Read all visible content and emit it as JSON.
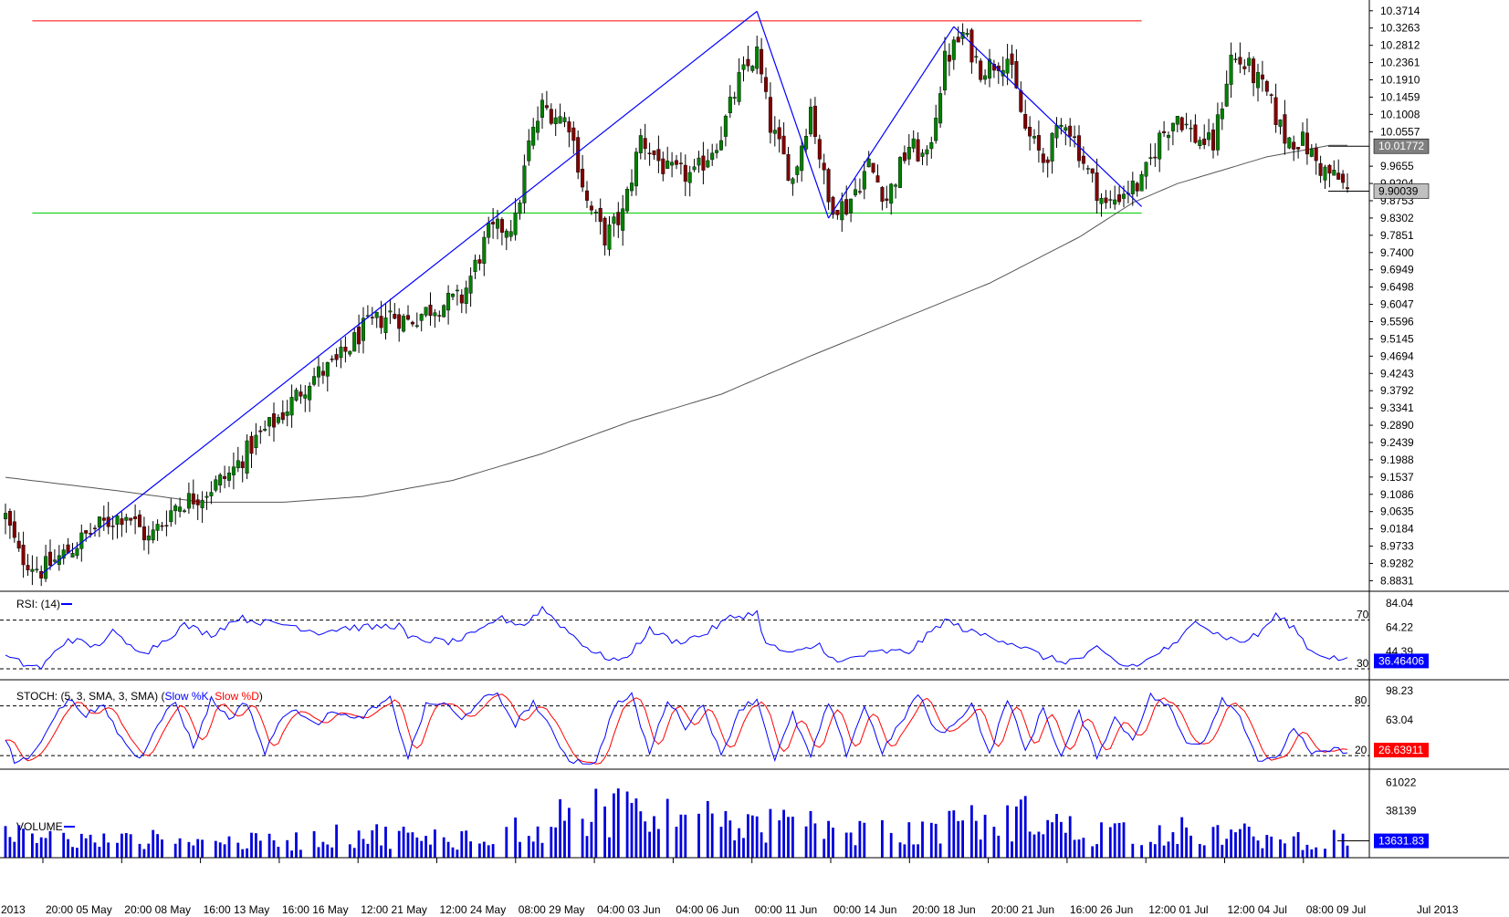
{
  "colors": {
    "bull_candle": "#008000",
    "bear_candle": "#800000",
    "wick": "#000000",
    "moving_average": "#555555",
    "trendline": "#0000ff",
    "resistance": "#ff0000",
    "support": "#00cc00",
    "rsi_line": "#0000ff",
    "stoch_k": "#0000ff",
    "stoch_d": "#ff0000",
    "volume_bars": "#0000dd",
    "badge_blue": "#0000ff",
    "badge_grey": "#808080"
  },
  "chart_data": [
    {
      "type": "candlestick",
      "pane": "price",
      "y_ticks": [
        "10.3714",
        "10.3263",
        "10.2812",
        "10.2361",
        "10.1910",
        "10.1459",
        "10.1008",
        "10.0557",
        "10.01772",
        "9.9655",
        "9.9204",
        "9.90039",
        "9.8753",
        "9.8302",
        "9.7851",
        "9.7400",
        "9.6949",
        "9.6498",
        "9.6047",
        "9.5596",
        "9.5145",
        "9.4694",
        "9.4243",
        "9.3792",
        "9.3341",
        "9.2890",
        "9.2439",
        "9.1988",
        "9.1537",
        "9.1086",
        "9.0635",
        "9.0184",
        "8.9733",
        "8.9282",
        "8.8831"
      ],
      "ylim": [
        8.865,
        10.39
      ],
      "x_ticks": [
        "2013",
        "20:00 05 May",
        "20:00 08 May",
        "16:00 13 May",
        "16:00 16 May",
        "12:00 21 May",
        "12:00 24 May",
        "08:00 29 May",
        "04:00 03 Jun",
        "04:00 06 Jun",
        "00:00 11 Jun",
        "00:00 14 Jun",
        "20:00 18 Jun",
        "20:00 21 Jun",
        "16:00 26 Jun",
        "12:00 01 Jul",
        "12:00 04 Jul",
        "08:00 09 Jul",
        "Jul 2013"
      ],
      "close_anchors": [
        [
          0,
          9.05
        ],
        [
          3,
          8.95
        ],
        [
          8,
          8.91
        ],
        [
          14,
          8.96
        ],
        [
          20,
          9.02
        ],
        [
          27,
          9.06
        ],
        [
          32,
          8.99
        ],
        [
          38,
          9.08
        ],
        [
          44,
          9.11
        ],
        [
          50,
          9.16
        ],
        [
          56,
          9.25
        ],
        [
          62,
          9.32
        ],
        [
          68,
          9.41
        ],
        [
          74,
          9.45
        ],
        [
          80,
          9.54
        ],
        [
          86,
          9.58
        ],
        [
          90,
          9.56
        ],
        [
          96,
          9.6
        ],
        [
          102,
          9.62
        ],
        [
          108,
          9.79
        ],
        [
          114,
          9.82
        ],
        [
          117,
          10.02
        ],
        [
          120,
          10.12
        ],
        [
          126,
          10.08
        ],
        [
          130,
          9.87
        ],
        [
          134,
          9.78
        ],
        [
          138,
          9.84
        ],
        [
          142,
          10.04
        ],
        [
          148,
          9.95
        ],
        [
          154,
          9.94
        ],
        [
          160,
          10.05
        ],
        [
          164,
          10.19
        ],
        [
          168,
          10.26
        ],
        [
          171,
          10.07
        ],
        [
          176,
          9.93
        ],
        [
          180,
          10.12
        ],
        [
          184,
          9.87
        ],
        [
          188,
          9.86
        ],
        [
          193,
          9.97
        ],
        [
          197,
          9.88
        ],
        [
          202,
          10.02
        ],
        [
          206,
          9.98
        ],
        [
          210,
          10.24
        ],
        [
          214,
          10.31
        ],
        [
          218,
          10.22
        ],
        [
          224,
          10.25
        ],
        [
          228,
          10.06
        ],
        [
          232,
          9.98
        ],
        [
          237,
          10.09
        ],
        [
          242,
          9.95
        ],
        [
          246,
          9.86
        ],
        [
          250,
          9.9
        ],
        [
          254,
          9.92
        ],
        [
          258,
          10.04
        ],
        [
          262,
          10.1
        ],
        [
          266,
          10.04
        ],
        [
          270,
          10.02
        ],
        [
          274,
          10.25
        ],
        [
          278,
          10.22
        ],
        [
          282,
          10.15
        ],
        [
          286,
          10.04
        ],
        [
          290,
          10.03
        ],
        [
          294,
          9.96
        ],
        [
          298,
          9.93
        ],
        [
          300,
          9.9
        ]
      ],
      "ma_anchors": [
        [
          0,
          9.153
        ],
        [
          25,
          9.118
        ],
        [
          44,
          9.088
        ],
        [
          62,
          9.088
        ],
        [
          80,
          9.103
        ],
        [
          100,
          9.145
        ],
        [
          120,
          9.215
        ],
        [
          140,
          9.3
        ],
        [
          160,
          9.37
        ],
        [
          180,
          9.47
        ],
        [
          200,
          9.565
        ],
        [
          220,
          9.66
        ],
        [
          240,
          9.78
        ],
        [
          252,
          9.87
        ],
        [
          262,
          9.92
        ],
        [
          282,
          9.99
        ],
        [
          296,
          10.02
        ],
        [
          300,
          10.02
        ]
      ],
      "trendlines": [
        [
          [
            8,
            8.9
          ],
          [
            168,
            10.37
          ]
        ],
        [
          [
            168,
            10.37
          ],
          [
            184,
            9.83
          ]
        ],
        [
          [
            184,
            9.83
          ],
          [
            212,
            10.33
          ]
        ],
        [
          [
            212,
            10.33
          ],
          [
            254,
            9.86
          ]
        ]
      ],
      "resistance_level": 10.345,
      "support_level": 9.843,
      "resistance_span": [
        6,
        254
      ],
      "support_span": [
        6,
        254
      ],
      "last_price_badges": [
        {
          "label": "10.01772",
          "value": 10.01772,
          "style": "dark"
        },
        {
          "label": "9.90039",
          "value": 9.90039,
          "style": "light"
        }
      ]
    },
    {
      "type": "line",
      "pane": "rsi",
      "title": "RSI: (14)",
      "y_ticks": [
        "84.04",
        "64.22",
        "44.39"
      ],
      "levels": [
        "70",
        "30"
      ],
      "ylim": [
        24,
        90
      ],
      "last_value": "36.46406",
      "anchors": [
        [
          0,
          40
        ],
        [
          4,
          34
        ],
        [
          8,
          31
        ],
        [
          14,
          55
        ],
        [
          20,
          48
        ],
        [
          24,
          60
        ],
        [
          28,
          48
        ],
        [
          32,
          45
        ],
        [
          36,
          55
        ],
        [
          40,
          66
        ],
        [
          46,
          58
        ],
        [
          52,
          72
        ],
        [
          58,
          68
        ],
        [
          64,
          66
        ],
        [
          70,
          60
        ],
        [
          76,
          64
        ],
        [
          82,
          64
        ],
        [
          88,
          66
        ],
        [
          90,
          55
        ],
        [
          100,
          52
        ],
        [
          106,
          60
        ],
        [
          110,
          72
        ],
        [
          116,
          66
        ],
        [
          120,
          80
        ],
        [
          126,
          60
        ],
        [
          132,
          42
        ],
        [
          138,
          36
        ],
        [
          144,
          62
        ],
        [
          150,
          52
        ],
        [
          156,
          58
        ],
        [
          162,
          72
        ],
        [
          168,
          76
        ],
        [
          170,
          50
        ],
        [
          176,
          42
        ],
        [
          182,
          50
        ],
        [
          186,
          34
        ],
        [
          190,
          40
        ],
        [
          196,
          44
        ],
        [
          202,
          44
        ],
        [
          210,
          70
        ],
        [
          216,
          60
        ],
        [
          222,
          55
        ],
        [
          226,
          50
        ],
        [
          232,
          40
        ],
        [
          236,
          36
        ],
        [
          240,
          38
        ],
        [
          244,
          46
        ],
        [
          250,
          32
        ],
        [
          254,
          34
        ],
        [
          258,
          44
        ],
        [
          262,
          50
        ],
        [
          266,
          72
        ],
        [
          270,
          60
        ],
        [
          276,
          52
        ],
        [
          280,
          58
        ],
        [
          284,
          74
        ],
        [
          288,
          64
        ],
        [
          292,
          44
        ],
        [
          296,
          40
        ],
        [
          300,
          36.46
        ]
      ]
    },
    {
      "type": "line",
      "pane": "stochastic",
      "title": "STOCH: (5, 3, SMA, 3, SMA)",
      "legend": [
        "Slow %K",
        "Slow %D"
      ],
      "y_ticks": [
        "98.23",
        "63.04"
      ],
      "levels": [
        "80",
        "20"
      ],
      "ylim": [
        8,
        106
      ],
      "last_value": "26.63911",
      "k_anchors": [
        [
          0,
          40
        ],
        [
          2,
          12
        ],
        [
          6,
          20
        ],
        [
          10,
          60
        ],
        [
          14,
          88
        ],
        [
          18,
          70
        ],
        [
          22,
          78
        ],
        [
          26,
          40
        ],
        [
          30,
          15
        ],
        [
          34,
          60
        ],
        [
          38,
          85
        ],
        [
          42,
          30
        ],
        [
          46,
          88
        ],
        [
          50,
          65
        ],
        [
          54,
          85
        ],
        [
          58,
          22
        ],
        [
          62,
          70
        ],
        [
          66,
          72
        ],
        [
          70,
          60
        ],
        [
          74,
          75
        ],
        [
          78,
          62
        ],
        [
          82,
          75
        ],
        [
          86,
          88
        ],
        [
          90,
          18
        ],
        [
          94,
          80
        ],
        [
          98,
          84
        ],
        [
          102,
          62
        ],
        [
          106,
          88
        ],
        [
          110,
          92
        ],
        [
          114,
          58
        ],
        [
          118,
          85
        ],
        [
          122,
          50
        ],
        [
          126,
          15
        ],
        [
          132,
          10
        ],
        [
          136,
          80
        ],
        [
          140,
          92
        ],
        [
          144,
          22
        ],
        [
          148,
          88
        ],
        [
          152,
          55
        ],
        [
          156,
          82
        ],
        [
          160,
          18
        ],
        [
          164,
          76
        ],
        [
          168,
          88
        ],
        [
          172,
          15
        ],
        [
          176,
          70
        ],
        [
          180,
          18
        ],
        [
          184,
          84
        ],
        [
          188,
          22
        ],
        [
          192,
          80
        ],
        [
          196,
          25
        ],
        [
          200,
          58
        ],
        [
          204,
          95
        ],
        [
          208,
          48
        ],
        [
          212,
          55
        ],
        [
          216,
          85
        ],
        [
          220,
          20
        ],
        [
          224,
          90
        ],
        [
          228,
          25
        ],
        [
          232,
          78
        ],
        [
          236,
          18
        ],
        [
          240,
          72
        ],
        [
          244,
          20
        ],
        [
          248,
          65
        ],
        [
          252,
          40
        ],
        [
          256,
          92
        ],
        [
          260,
          80
        ],
        [
          264,
          35
        ],
        [
          268,
          38
        ],
        [
          272,
          90
        ],
        [
          276,
          68
        ],
        [
          280,
          15
        ],
        [
          284,
          14
        ],
        [
          288,
          55
        ],
        [
          292,
          20
        ],
        [
          296,
          26.6
        ],
        [
          300,
          26.6
        ]
      ]
    },
    {
      "type": "bar",
      "pane": "volume",
      "title": "VOLUME",
      "y_ticks": [
        "61022",
        "38139"
      ],
      "ylim": [
        0,
        68000
      ],
      "last_value": "13631.83",
      "anchors": [
        [
          0,
          18000
        ],
        [
          20,
          13000
        ],
        [
          40,
          15000
        ],
        [
          60,
          12000
        ],
        [
          80,
          19000
        ],
        [
          100,
          15000
        ],
        [
          120,
          27000
        ],
        [
          140,
          42000
        ],
        [
          160,
          28000
        ],
        [
          180,
          24000
        ],
        [
          200,
          18000
        ],
        [
          220,
          30000
        ],
        [
          230,
          33000
        ],
        [
          240,
          20000
        ],
        [
          260,
          22000
        ],
        [
          280,
          17000
        ],
        [
          300,
          13631
        ]
      ]
    }
  ]
}
